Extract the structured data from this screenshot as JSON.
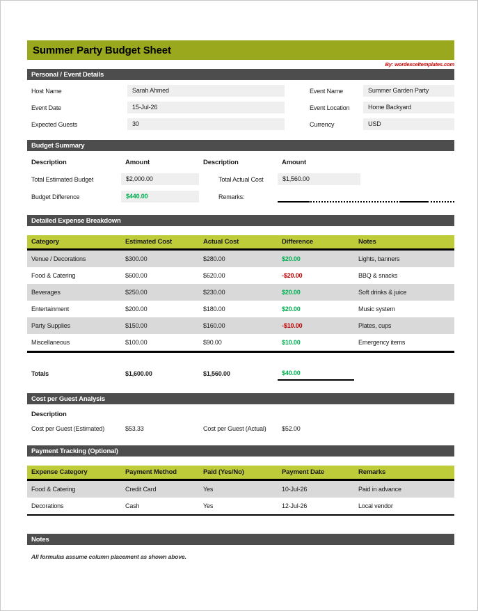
{
  "colors": {
    "title_green": "#9aa81e",
    "header_green": "#bfcc3a",
    "bar_gray": "#4d4d4d",
    "row_gray": "#d9d9d9",
    "cell_gray": "#efefef",
    "pos_green": "#00b050",
    "neg_red": "#c00000",
    "byline_red": "#cc0000"
  },
  "page": {
    "title": "Summer Party Budget Sheet",
    "byline": "By: wordexceltemplates.com"
  },
  "personal_details": {
    "section_title": "Personal / Event Details",
    "fields": [
      {
        "label": "Host Name",
        "value": "Sarah Ahmed"
      },
      {
        "label": "Event Date",
        "value": "15-Jul-26"
      },
      {
        "label": "Expected Guests",
        "value": "30"
      },
      {
        "label": "Event Name",
        "value": "Summer Garden Party"
      },
      {
        "label": "Event Location",
        "value": "Home Backyard"
      },
      {
        "label": "Currency",
        "value": "USD"
      }
    ]
  },
  "budget_summary": {
    "section_title": "Budget Summary",
    "headers": [
      "Description",
      "Amount",
      "Description",
      "Amount"
    ],
    "row1": {
      "label_left": "Total Estimated Budget",
      "amount_left": "$2,000.00",
      "label_right": "Total Actual Cost",
      "amount_right": "$1,560.00"
    },
    "row2": {
      "label_left": "Budget Difference",
      "amount_left": "$440.00",
      "amount_left_class": "pos",
      "label_right": "Remarks:"
    }
  },
  "expense_breakdown": {
    "section_title": "Detailed Expense Breakdown",
    "columns": [
      "Category",
      "Estimated Cost",
      "Actual Cost",
      "Difference",
      "Notes"
    ],
    "rows": [
      {
        "category": "Venue / Decorations",
        "estimated": "$300.00",
        "actual": "$280.00",
        "difference": "$20.00",
        "diff_class": "pos",
        "notes": "Lights, banners"
      },
      {
        "category": "Food & Catering",
        "estimated": "$600.00",
        "actual": "$620.00",
        "difference": "-$20.00",
        "diff_class": "neg",
        "notes": "BBQ & snacks"
      },
      {
        "category": "Beverages",
        "estimated": "$250.00",
        "actual": "$230.00",
        "difference": "$20.00",
        "diff_class": "pos",
        "notes": "Soft drinks & juice"
      },
      {
        "category": "Entertainment",
        "estimated": "$200.00",
        "actual": "$180.00",
        "difference": "$20.00",
        "diff_class": "pos",
        "notes": "Music system"
      },
      {
        "category": "Party Supplies",
        "estimated": "$150.00",
        "actual": "$160.00",
        "difference": "-$10.00",
        "diff_class": "neg",
        "notes": "Plates, cups"
      },
      {
        "category": "Miscellaneous",
        "estimated": "$100.00",
        "actual": "$90.00",
        "difference": "$10.00",
        "diff_class": "pos",
        "notes": "Emergency items"
      }
    ],
    "totals": {
      "label": "Totals",
      "estimated": "$1,600.00",
      "actual": "$1,560.00",
      "difference": "$40.00",
      "diff_class": "pos"
    }
  },
  "cost_per_guest": {
    "section_title": "Cost per Guest Analysis",
    "header": "Description",
    "row": {
      "label_left": "Cost per Guest (Estimated)",
      "value_left": "$53.33",
      "label_right": "Cost per Guest (Actual)",
      "value_right": "$52.00"
    }
  },
  "payment_tracking": {
    "section_title": "Payment Tracking (Optional)",
    "columns": [
      "Expense Category",
      "Payment Method",
      "Paid (Yes/No)",
      "Payment Date",
      "Remarks"
    ],
    "rows": [
      {
        "category": "Food & Catering",
        "method": "Credit Card",
        "paid": "Yes",
        "date": "10-Jul-26",
        "remarks": "Paid in advance"
      },
      {
        "category": "Decorations",
        "method": "Cash",
        "paid": "Yes",
        "date": "12-Jul-26",
        "remarks": "Local vendor"
      }
    ]
  },
  "notes": {
    "section_title": "Notes",
    "text": "All formulas assume column placement as shown above."
  }
}
